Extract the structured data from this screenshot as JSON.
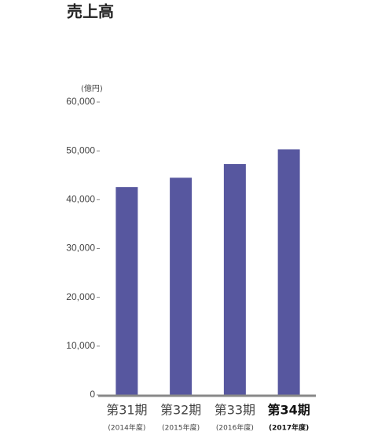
{
  "chart_data": {
    "type": "bar",
    "title": "売上高",
    "y_unit": "(億円)",
    "categories": [
      "第31期",
      "第32期",
      "第33期",
      "第34期"
    ],
    "category_sublabels": [
      "(2014年度)",
      "(2015年度)",
      "(2016年度)",
      "(2017年度)"
    ],
    "highlight_index": 3,
    "values": [
      42600,
      44500,
      47300,
      50300
    ],
    "color": "#57579f",
    "ylim": [
      0,
      60000
    ],
    "yticks": [
      0,
      {
        "value": 10000,
        "label": "10,000"
      },
      {
        "value": 20000,
        "label": "20,000"
      },
      {
        "value": 30000,
        "label": "30,000"
      },
      {
        "value": 40000,
        "label": "40,000"
      },
      {
        "value": 50000,
        "label": "50,000"
      },
      {
        "value": 60000,
        "label": "60,000"
      }
    ],
    "grid": false
  }
}
